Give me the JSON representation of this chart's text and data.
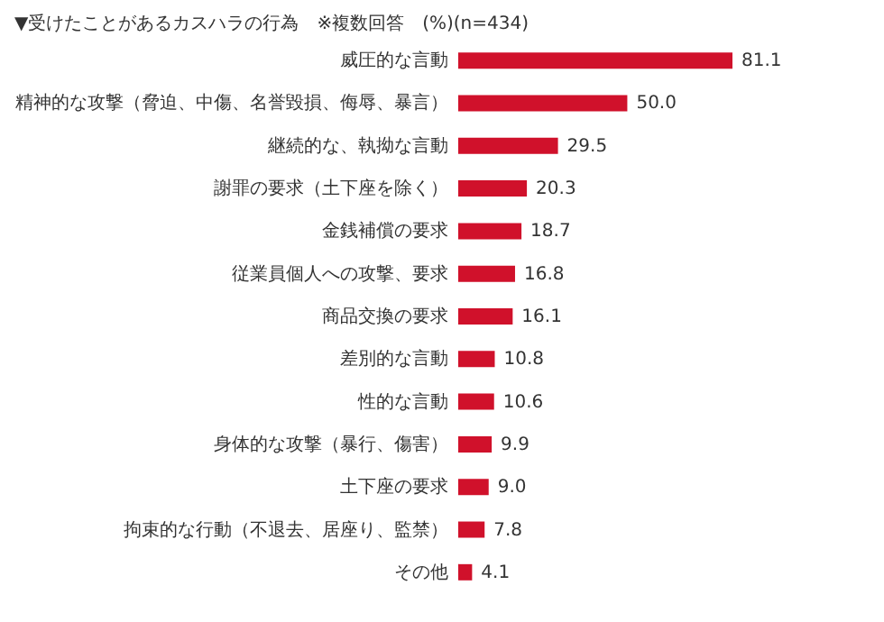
{
  "chart_data": {
    "type": "bar",
    "orientation": "horizontal",
    "title": "▼受けたことがあるカスハラの行為　※複数回答　(%)(n=434)",
    "categories": [
      "威圧的な言動",
      "精神的な攻撃（脅迫、中傷、名誉毀損、侮辱、暴言）",
      "継続的な、執拗な言動",
      "謝罪の要求（土下座を除く）",
      "金銭補償の要求",
      "従業員個人への攻撃、要求",
      "商品交換の要求",
      "差別的な言動",
      "性的な言動",
      "身体的な攻撃（暴行、傷害）",
      "土下座の要求",
      "拘束的な行動（不退去、居座り、監禁）",
      "その他"
    ],
    "values": [
      81.1,
      50.0,
      29.5,
      20.3,
      18.7,
      16.8,
      16.1,
      10.8,
      10.6,
      9.9,
      9.0,
      7.8,
      4.1
    ],
    "value_labels": [
      "81.1",
      "50.0",
      "29.5",
      "20.3",
      "18.7",
      "16.8",
      "16.1",
      "10.8",
      "10.6",
      "9.9",
      "9.0",
      "7.8",
      "4.1"
    ],
    "color": "#d0112b"
  }
}
